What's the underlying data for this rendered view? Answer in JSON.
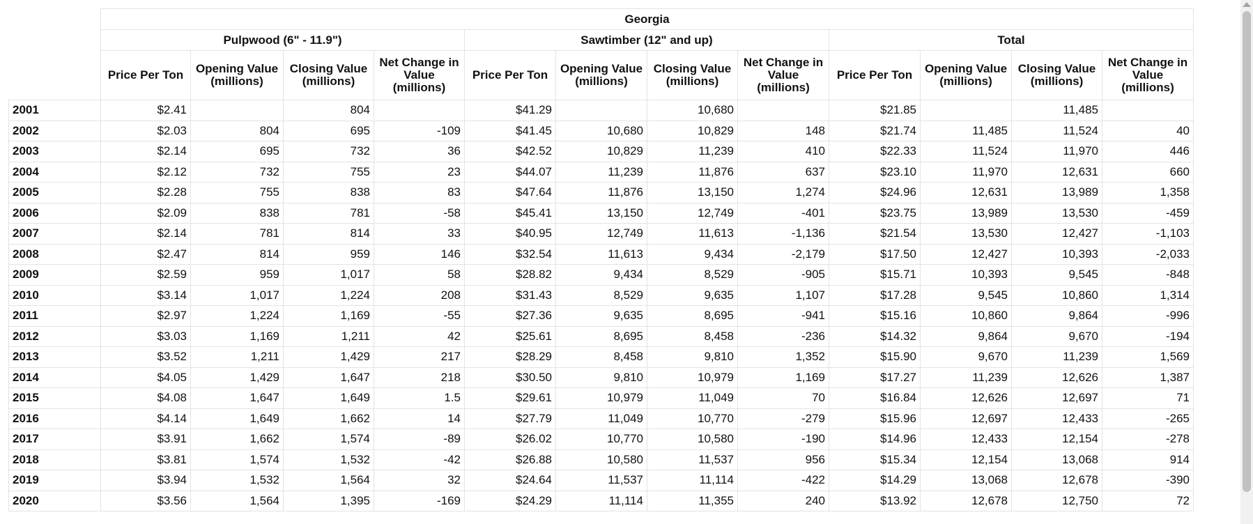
{
  "table": {
    "title": "Georgia",
    "groups": [
      "Pulpwood (6\" - 11.9\")",
      "Sawtimber (12\" and up)",
      "Total"
    ],
    "columns": [
      "Price Per Ton",
      "Opening Value (millions)",
      "Closing Value (millions)",
      "Net Change in Value (millions)"
    ],
    "rows": [
      {
        "year": "2001",
        "cells": [
          "$2.41",
          "",
          "804",
          "",
          "$41.29",
          "",
          "10,680",
          "",
          "$21.85",
          "",
          "11,485",
          ""
        ]
      },
      {
        "year": "2002",
        "cells": [
          "$2.03",
          "804",
          "695",
          "-109",
          "$41.45",
          "10,680",
          "10,829",
          "148",
          "$21.74",
          "11,485",
          "11,524",
          "40"
        ]
      },
      {
        "year": "2003",
        "cells": [
          "$2.14",
          "695",
          "732",
          "36",
          "$42.52",
          "10,829",
          "11,239",
          "410",
          "$22.33",
          "11,524",
          "11,970",
          "446"
        ]
      },
      {
        "year": "2004",
        "cells": [
          "$2.12",
          "732",
          "755",
          "23",
          "$44.07",
          "11,239",
          "11,876",
          "637",
          "$23.10",
          "11,970",
          "12,631",
          "660"
        ]
      },
      {
        "year": "2005",
        "cells": [
          "$2.28",
          "755",
          "838",
          "83",
          "$47.64",
          "11,876",
          "13,150",
          "1,274",
          "$24.96",
          "12,631",
          "13,989",
          "1,358"
        ]
      },
      {
        "year": "2006",
        "cells": [
          "$2.09",
          "838",
          "781",
          "-58",
          "$45.41",
          "13,150",
          "12,749",
          "-401",
          "$23.75",
          "13,989",
          "13,530",
          "-459"
        ]
      },
      {
        "year": "2007",
        "cells": [
          "$2.14",
          "781",
          "814",
          "33",
          "$40.95",
          "12,749",
          "11,613",
          "-1,136",
          "$21.54",
          "13,530",
          "12,427",
          "-1,103"
        ]
      },
      {
        "year": "2008",
        "cells": [
          "$2.47",
          "814",
          "959",
          "146",
          "$32.54",
          "11,613",
          "9,434",
          "-2,179",
          "$17.50",
          "12,427",
          "10,393",
          "-2,033"
        ]
      },
      {
        "year": "2009",
        "cells": [
          "$2.59",
          "959",
          "1,017",
          "58",
          "$28.82",
          "9,434",
          "8,529",
          "-905",
          "$15.71",
          "10,393",
          "9,545",
          "-848"
        ]
      },
      {
        "year": "2010",
        "cells": [
          "$3.14",
          "1,017",
          "1,224",
          "208",
          "$31.43",
          "8,529",
          "9,635",
          "1,107",
          "$17.28",
          "9,545",
          "10,860",
          "1,314"
        ]
      },
      {
        "year": "2011",
        "cells": [
          "$2.97",
          "1,224",
          "1,169",
          "-55",
          "$27.36",
          "9,635",
          "8,695",
          "-941",
          "$15.16",
          "10,860",
          "9,864",
          "-996"
        ]
      },
      {
        "year": "2012",
        "cells": [
          "$3.03",
          "1,169",
          "1,211",
          "42",
          "$25.61",
          "8,695",
          "8,458",
          "-236",
          "$14.32",
          "9,864",
          "9,670",
          "-194"
        ]
      },
      {
        "year": "2013",
        "cells": [
          "$3.52",
          "1,211",
          "1,429",
          "217",
          "$28.29",
          "8,458",
          "9,810",
          "1,352",
          "$15.90",
          "9,670",
          "11,239",
          "1,569"
        ]
      },
      {
        "year": "2014",
        "cells": [
          "$4.05",
          "1,429",
          "1,647",
          "218",
          "$30.50",
          "9,810",
          "10,979",
          "1,169",
          "$17.27",
          "11,239",
          "12,626",
          "1,387"
        ]
      },
      {
        "year": "2015",
        "cells": [
          "$4.08",
          "1,647",
          "1,649",
          "1.5",
          "$29.61",
          "10,979",
          "11,049",
          "70",
          "$16.84",
          "12,626",
          "12,697",
          "71"
        ]
      },
      {
        "year": "2016",
        "cells": [
          "$4.14",
          "1,649",
          "1,662",
          "14",
          "$27.79",
          "11,049",
          "10,770",
          "-279",
          "$15.96",
          "12,697",
          "12,433",
          "-265"
        ]
      },
      {
        "year": "2017",
        "cells": [
          "$3.91",
          "1,662",
          "1,574",
          "-89",
          "$26.02",
          "10,770",
          "10,580",
          "-190",
          "$14.96",
          "12,433",
          "12,154",
          "-278"
        ]
      },
      {
        "year": "2018",
        "cells": [
          "$3.81",
          "1,574",
          "1,532",
          "-42",
          "$26.88",
          "10,580",
          "11,537",
          "956",
          "$15.34",
          "12,154",
          "13,068",
          "914"
        ]
      },
      {
        "year": "2019",
        "cells": [
          "$3.94",
          "1,532",
          "1,564",
          "32",
          "$24.64",
          "11,537",
          "11,114",
          "-422",
          "$14.29",
          "13,068",
          "12,678",
          "-390"
        ]
      },
      {
        "year": "2020",
        "cells": [
          "$3.56",
          "1,564",
          "1,395",
          "-169",
          "$24.29",
          "11,114",
          "11,355",
          "240",
          "$13.92",
          "12,678",
          "12,750",
          "72"
        ]
      }
    ]
  }
}
